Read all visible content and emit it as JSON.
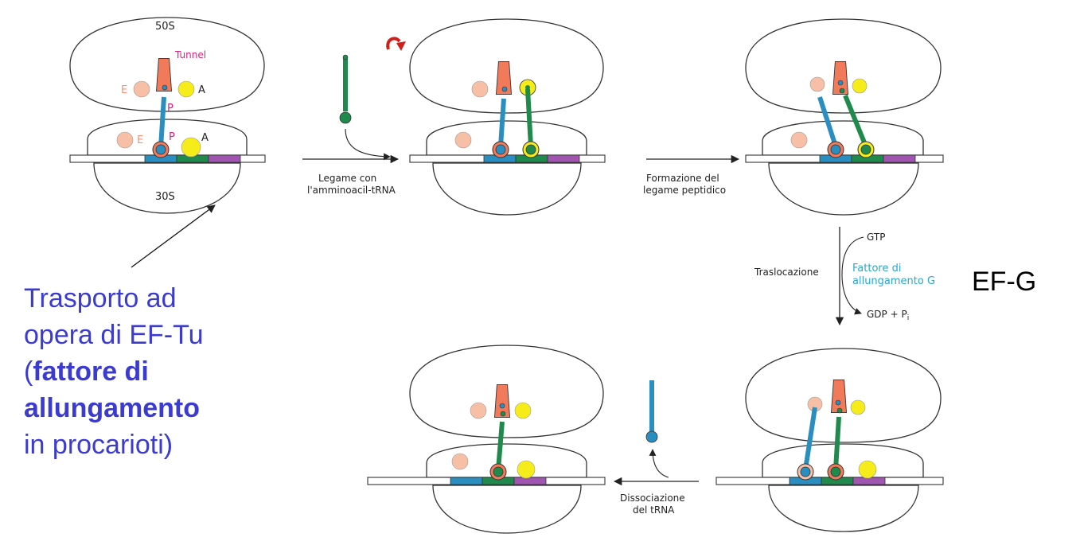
{
  "subunits": {
    "large": "50S",
    "small": "30S"
  },
  "tunnel_label": "Tunnel",
  "sites": {
    "e": "E",
    "p": "P",
    "a": "A"
  },
  "steps": {
    "binding_1": "Legame con",
    "binding_2": "l'amminoacil-tRNA",
    "peptide_1": "Formazione del",
    "peptide_2": "legame peptidico",
    "translocation": "Traslocazione",
    "dissociation_1": "Dissociazione",
    "dissociation_2": "del tRNA"
  },
  "gtp": {
    "gtp": "GTP",
    "factor_1": "Fattore di",
    "factor_2": "allungamento G",
    "gdp": "GDP + P",
    "gdp_sub": "i"
  },
  "efg_label": "EF-G",
  "note": {
    "line1": "Trasporto ad",
    "line2": "opera di EF-Tu",
    "line3_paren": "(",
    "line3_bold": "fattore di",
    "line4_bold": "allungamento",
    "line5": "in procarioti)"
  },
  "colors": {
    "tunnel": "#f07a5a",
    "e_site_trna": "#f7c0a6",
    "p_trna": "#2a8fc0",
    "a_trna": "#1f8a4c",
    "a_ball": "#f5ec1a",
    "purple_codon": "#a056b0",
    "annotation_blue": "#3b3bd1"
  }
}
